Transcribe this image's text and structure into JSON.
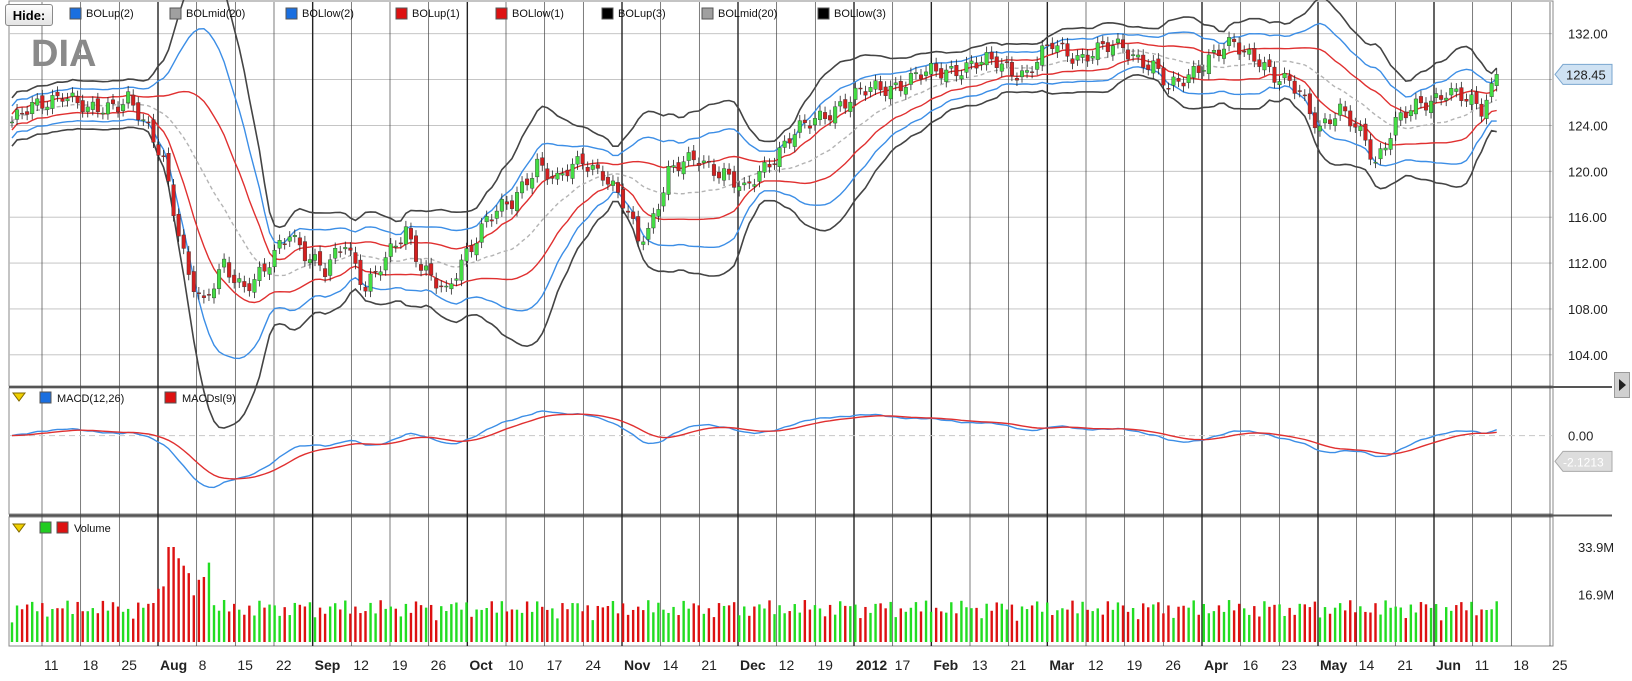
{
  "toolbar": {
    "hide_label": "Hide:"
  },
  "symbol": "DIA",
  "colors": {
    "up": "#44dd44",
    "down": "#d42020",
    "boll2": "#3c8ee6",
    "boll1": "#e03030",
    "boll3": "#444444",
    "mid": "#b4b4b4",
    "macd": "#3c8ee6",
    "signal": "#e03030"
  },
  "price_legend": [
    {
      "label": "BOLup(2)",
      "color": "#1a6fe0"
    },
    {
      "label": "BOLmid(20)",
      "color": "#a0a0a0"
    },
    {
      "label": "BOLlow(2)",
      "color": "#1a6fe0"
    },
    {
      "label": "BOLup(1)",
      "color": "#dd1111"
    },
    {
      "label": "BOLlow(1)",
      "color": "#dd1111"
    },
    {
      "label": "BOLup(3)",
      "color": "#000000"
    },
    {
      "label": "BOLmid(20)",
      "color": "#a0a0a0"
    },
    {
      "label": "BOLlow(3)",
      "color": "#000000"
    }
  ],
  "macd_legend": [
    {
      "label": "MACD(12,26)",
      "color": "#1a6fe0"
    },
    {
      "label": "MACDsl(9)",
      "color": "#dd1111"
    }
  ],
  "volume_legend": {
    "label": "Volume",
    "up_color": "#22cc22",
    "down_color": "#dd1111"
  },
  "chart_data": [
    {
      "type": "candlestick",
      "title": "DIA",
      "y_ticks": [
        "132.00",
        "128.00",
        "124.00",
        "120.00",
        "116.00",
        "112.00",
        "108.00",
        "104.00"
      ],
      "ylim": [
        102.5,
        134.5
      ],
      "last_price": "128.45",
      "x_labels": [
        "11",
        "18",
        "25",
        "Aug",
        "8",
        "15",
        "22",
        "Sep",
        "12",
        "19",
        "26",
        "Oct",
        "10",
        "17",
        "24",
        "Nov",
        "14",
        "21",
        "Dec",
        "12",
        "19",
        "2012",
        "17",
        "Feb",
        "13",
        "21",
        "Mar",
        "12",
        "19",
        "26",
        "Apr",
        "16",
        "23",
        "May",
        "14",
        "21",
        "Jun",
        "11",
        "18",
        "25"
      ],
      "close_path": [
        [
          0,
          124.3
        ],
        [
          10,
          127
        ],
        [
          15,
          125
        ],
        [
          23,
          126.5
        ],
        [
          26,
          124
        ],
        [
          30,
          121
        ],
        [
          35,
          111
        ],
        [
          38,
          108
        ],
        [
          42,
          112
        ],
        [
          46,
          110
        ],
        [
          50,
          111
        ],
        [
          55,
          115
        ],
        [
          58,
          113
        ],
        [
          62,
          111
        ],
        [
          66,
          114
        ],
        [
          70,
          110
        ],
        [
          74,
          112
        ],
        [
          78,
          115
        ],
        [
          81,
          112
        ],
        [
          86,
          109
        ],
        [
          90,
          113
        ],
        [
          94,
          116
        ],
        [
          99,
          117
        ],
        [
          104,
          121
        ],
        [
          108,
          119
        ],
        [
          113,
          121
        ],
        [
          117,
          120
        ],
        [
          121,
          117
        ],
        [
          124,
          114
        ],
        [
          126,
          115
        ],
        [
          130,
          120
        ],
        [
          136,
          121
        ],
        [
          141,
          120
        ],
        [
          145,
          118
        ],
        [
          150,
          121
        ],
        [
          154,
          123
        ],
        [
          158,
          124
        ],
        [
          164,
          126
        ],
        [
          170,
          127
        ],
        [
          178,
          128
        ],
        [
          186,
          129
        ],
        [
          195,
          129.5
        ],
        [
          201,
          128.5
        ],
        [
          206,
          131
        ],
        [
          212,
          130
        ],
        [
          220,
          131
        ],
        [
          226,
          129
        ],
        [
          229,
          127
        ],
        [
          234,
          129
        ],
        [
          242,
          131
        ],
        [
          247,
          130
        ],
        [
          250,
          128
        ],
        [
          255,
          127
        ],
        [
          259,
          124
        ],
        [
          263,
          125
        ],
        [
          268,
          123
        ],
        [
          270,
          121
        ],
        [
          274,
          124
        ],
        [
          279,
          126
        ],
        [
          284,
          127
        ],
        [
          288,
          126
        ],
        [
          291,
          125.5
        ],
        [
          294,
          128.45
        ]
      ],
      "macd": {
        "y_tick": "0.00",
        "ylim": [
          -6.3,
          3.6
        ],
        "last_value": "-2.1213"
      },
      "volume": {
        "y_ticks": [
          "33.9M",
          "16.9M"
        ],
        "ymax_millions": 33.9
      }
    }
  ]
}
